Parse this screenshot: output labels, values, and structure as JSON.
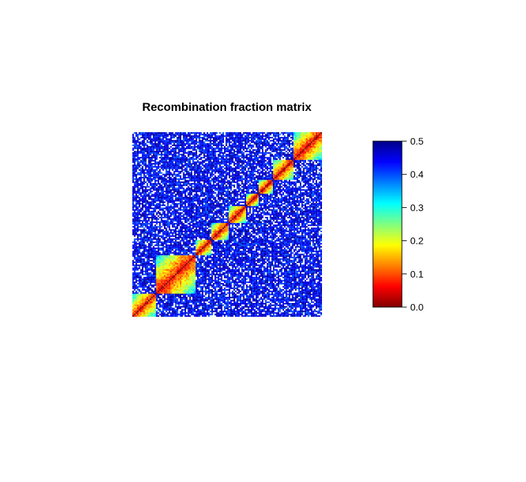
{
  "chart_data": {
    "type": "heatmap",
    "title": "Recombination fraction matrix",
    "xlabel": "",
    "ylabel": "",
    "color_scale": {
      "min": 0.0,
      "max": 0.5,
      "ticks": [
        "0.0",
        "0.1",
        "0.2",
        "0.3",
        "0.4",
        "0.5"
      ],
      "colors": [
        "#800000",
        "#ff0000",
        "#ff8000",
        "#ffff00",
        "#80ff80",
        "#00ffff",
        "#0080ff",
        "#0000ff",
        "#00008b"
      ]
    },
    "grid": false,
    "matrix": {
      "markers": 120,
      "diagonal_value": 0.0,
      "off_diagonal_typical": 0.45,
      "linkage_groups": [
        {
          "start": 0,
          "end": 15
        },
        {
          "start": 15,
          "end": 40
        },
        {
          "start": 40,
          "end": 50
        },
        {
          "start": 50,
          "end": 61
        },
        {
          "start": 61,
          "end": 72
        },
        {
          "start": 72,
          "end": 80
        },
        {
          "start": 80,
          "end": 89
        },
        {
          "start": 89,
          "end": 102
        },
        {
          "start": 102,
          "end": 120
        }
      ]
    }
  }
}
